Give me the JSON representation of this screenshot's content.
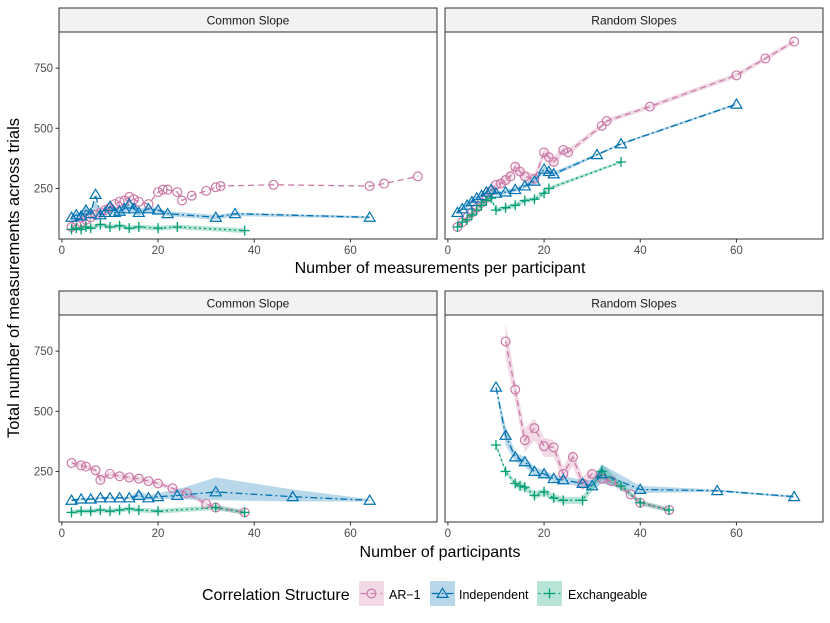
{
  "figure": {
    "y_axis_title": "Total number of measurements across trials",
    "legend_title": "Correlation Structure"
  },
  "colors": {
    "AR-1": "#cc79a7",
    "Independent": "#0072b2",
    "Exchangeable": "#009e73"
  },
  "legend": [
    {
      "name": "AR−1",
      "key": "AR-1",
      "marker": "circle"
    },
    {
      "name": "Independent",
      "key": "Independent",
      "marker": "triangle"
    },
    {
      "name": "Exchangeable",
      "key": "Exchangeable",
      "marker": "plus"
    }
  ],
  "chart_data": [
    {
      "type": "line",
      "title": "Common Slope",
      "xlabel": "Number of measurements per participant",
      "ylabel": "Total number of measurements across trials",
      "xlim": [
        -0.6,
        78
      ],
      "ylim": [
        40,
        900
      ],
      "xticks": [
        0,
        20,
        40,
        60
      ],
      "yticks": [
        250,
        500,
        750
      ],
      "series": [
        {
          "name": "AR-1",
          "marker": "circle",
          "dash": "dashed",
          "x": [
            2,
            3,
            4,
            5,
            6,
            7,
            8,
            9,
            10,
            11,
            12,
            13,
            14,
            15,
            16,
            18,
            20,
            21,
            22,
            24,
            25,
            27,
            30,
            32,
            33,
            44,
            64,
            67,
            74
          ],
          "y": [
            90,
            100,
            110,
            120,
            130,
            140,
            150,
            160,
            170,
            185,
            195,
            200,
            215,
            205,
            195,
            185,
            235,
            245,
            245,
            235,
            200,
            220,
            240,
            255,
            260,
            265,
            260,
            270,
            300
          ]
        },
        {
          "name": "Independent",
          "marker": "triangle",
          "dash": "dashdot",
          "x": [
            2,
            3,
            4,
            5,
            6,
            7,
            8,
            9,
            10,
            11,
            12,
            13,
            14,
            15,
            16,
            18,
            20,
            22,
            32,
            36,
            64
          ],
          "y": [
            130,
            140,
            135,
            160,
            145,
            225,
            140,
            150,
            175,
            150,
            155,
            165,
            185,
            165,
            150,
            165,
            160,
            145,
            130,
            145,
            130
          ],
          "band_upper": [
            145,
            150,
            150,
            175,
            160,
            200,
            155,
            165,
            185,
            165,
            170,
            180,
            200,
            185,
            165,
            175,
            170,
            155,
            140,
            150,
            135
          ],
          "band_lower": [
            115,
            125,
            120,
            140,
            130,
            160,
            125,
            135,
            150,
            135,
            140,
            145,
            160,
            145,
            135,
            150,
            145,
            135,
            120,
            135,
            125
          ]
        },
        {
          "name": "Exchangeable",
          "marker": "plus",
          "dash": "dotted",
          "x": [
            2,
            3,
            4,
            5,
            6,
            8,
            10,
            12,
            14,
            16,
            20,
            24,
            38
          ],
          "y": [
            80,
            85,
            80,
            90,
            85,
            100,
            90,
            95,
            85,
            90,
            85,
            90,
            75
          ],
          "band_upper": [
            90,
            95,
            90,
            100,
            95,
            110,
            100,
            105,
            95,
            100,
            95,
            100,
            85
          ],
          "band_lower": [
            70,
            75,
            70,
            80,
            75,
            90,
            80,
            85,
            75,
            80,
            75,
            80,
            65
          ]
        }
      ]
    },
    {
      "type": "line",
      "title": "Random Slopes",
      "xlabel": "Number of measurements per participant",
      "ylabel": "Total number of measurements across trials",
      "xlim": [
        -0.6,
        78
      ],
      "ylim": [
        40,
        900
      ],
      "xticks": [
        0,
        20,
        40,
        60
      ],
      "yticks": [
        250,
        500,
        750
      ],
      "series": [
        {
          "name": "AR-1",
          "marker": "circle",
          "dash": "dashed",
          "x": [
            2,
            3,
            4,
            5,
            6,
            7,
            8,
            9,
            10,
            11,
            12,
            13,
            14,
            15,
            16,
            18,
            20,
            21,
            22,
            24,
            25,
            32,
            33,
            42,
            60,
            66,
            72
          ],
          "y": [
            90,
            110,
            130,
            150,
            170,
            190,
            210,
            240,
            265,
            270,
            285,
            300,
            340,
            320,
            300,
            290,
            400,
            380,
            360,
            410,
            400,
            510,
            530,
            590,
            720,
            790,
            860
          ],
          "band_upper": [
            95,
            115,
            140,
            160,
            180,
            205,
            225,
            255,
            285,
            290,
            305,
            320,
            360,
            345,
            325,
            310,
            420,
            400,
            380,
            425,
            415,
            520,
            540,
            600,
            730,
            800,
            870
          ],
          "band_lower": [
            85,
            105,
            120,
            140,
            160,
            175,
            195,
            225,
            245,
            250,
            265,
            280,
            320,
            295,
            275,
            270,
            380,
            360,
            340,
            395,
            385,
            500,
            520,
            580,
            710,
            780,
            850
          ]
        },
        {
          "name": "Independent",
          "marker": "triangle",
          "dash": "dashdot",
          "x": [
            2,
            3,
            4,
            5,
            6,
            7,
            8,
            9,
            10,
            12,
            14,
            16,
            18,
            20,
            21,
            22,
            31,
            36,
            60
          ],
          "y": [
            150,
            165,
            180,
            195,
            210,
            220,
            235,
            245,
            230,
            235,
            245,
            260,
            280,
            330,
            320,
            310,
            390,
            435,
            600
          ],
          "band_upper": [
            155,
            170,
            190,
            205,
            220,
            230,
            245,
            255,
            240,
            245,
            255,
            270,
            295,
            340,
            330,
            320,
            395,
            440,
            605
          ],
          "band_lower": [
            145,
            160,
            170,
            185,
            200,
            210,
            225,
            235,
            220,
            225,
            235,
            250,
            265,
            320,
            310,
            300,
            385,
            430,
            595
          ]
        },
        {
          "name": "Exchangeable",
          "marker": "plus",
          "dash": "dotted",
          "x": [
            2,
            3,
            4,
            5,
            6,
            7,
            8,
            9,
            10,
            12,
            14,
            16,
            18,
            20,
            21,
            36
          ],
          "y": [
            90,
            110,
            120,
            140,
            160,
            180,
            200,
            210,
            160,
            170,
            180,
            200,
            205,
            230,
            250,
            360
          ],
          "band_upper": [
            95,
            115,
            125,
            150,
            170,
            190,
            210,
            220,
            170,
            180,
            190,
            210,
            215,
            240,
            258,
            365
          ],
          "band_lower": [
            85,
            105,
            115,
            130,
            150,
            170,
            190,
            200,
            150,
            160,
            170,
            190,
            195,
            220,
            242,
            355
          ]
        }
      ]
    },
    {
      "type": "line",
      "title": "Common Slope",
      "xlabel": "Number of participants",
      "ylabel": "Total number of measurements across trials",
      "xlim": [
        -0.6,
        78
      ],
      "ylim": [
        40,
        900
      ],
      "xticks": [
        0,
        20,
        40,
        60
      ],
      "yticks": [
        250,
        500,
        750
      ],
      "series": [
        {
          "name": "AR-1",
          "marker": "circle",
          "dash": "dashed",
          "x": [
            2,
            4,
            5,
            7,
            8,
            10,
            12,
            14,
            16,
            18,
            20,
            23,
            26,
            30,
            32,
            38
          ],
          "y": [
            285,
            275,
            270,
            255,
            215,
            240,
            230,
            225,
            220,
            210,
            200,
            180,
            160,
            115,
            100,
            80
          ],
          "band_upper": [
            295,
            285,
            280,
            265,
            235,
            250,
            240,
            235,
            230,
            220,
            210,
            190,
            170,
            125,
            110,
            90
          ],
          "band_lower": [
            275,
            265,
            260,
            245,
            200,
            230,
            220,
            215,
            210,
            200,
            190,
            170,
            150,
            105,
            90,
            70
          ]
        },
        {
          "name": "Independent",
          "marker": "triangle",
          "dash": "dashdot",
          "x": [
            2,
            4,
            6,
            8,
            10,
            12,
            14,
            16,
            18,
            20,
            24,
            32,
            48,
            64
          ],
          "y": [
            130,
            135,
            135,
            140,
            140,
            140,
            140,
            150,
            140,
            145,
            150,
            165,
            145,
            130
          ],
          "band_upper": [
            135,
            140,
            140,
            145,
            145,
            145,
            145,
            170,
            150,
            160,
            175,
            225,
            175,
            135
          ],
          "band_lower": [
            125,
            130,
            130,
            135,
            135,
            135,
            135,
            130,
            130,
            135,
            135,
            130,
            125,
            125
          ]
        },
        {
          "name": "Exchangeable",
          "marker": "plus",
          "dash": "dotted",
          "x": [
            2,
            4,
            6,
            8,
            10,
            12,
            14,
            16,
            20,
            32,
            38
          ],
          "y": [
            80,
            85,
            85,
            90,
            85,
            90,
            95,
            90,
            85,
            100,
            80
          ],
          "band_upper": [
            90,
            95,
            95,
            100,
            95,
            100,
            105,
            100,
            95,
            110,
            90
          ],
          "band_lower": [
            70,
            75,
            75,
            80,
            75,
            80,
            85,
            80,
            75,
            90,
            70
          ]
        }
      ]
    },
    {
      "type": "line",
      "title": "Random Slopes",
      "xlabel": "Number of participants",
      "ylabel": "Total number of measurements across trials",
      "xlim": [
        -0.6,
        78
      ],
      "ylim": [
        40,
        900
      ],
      "xticks": [
        0,
        20,
        40,
        60
      ],
      "yticks": [
        250,
        500,
        750
      ],
      "series": [
        {
          "name": "AR-1",
          "marker": "circle",
          "dash": "dashed",
          "x": [
            12,
            14,
            16,
            18,
            20,
            22,
            24,
            26,
            28,
            30,
            32,
            34,
            38,
            40,
            46
          ],
          "y": [
            790,
            590,
            380,
            430,
            355,
            350,
            240,
            310,
            200,
            240,
            220,
            210,
            155,
            120,
            90
          ],
          "band_upper": [
            870,
            630,
            430,
            470,
            390,
            380,
            270,
            340,
            230,
            260,
            240,
            225,
            165,
            130,
            100
          ],
          "band_lower": [
            720,
            540,
            330,
            380,
            310,
            310,
            210,
            270,
            170,
            215,
            200,
            195,
            145,
            110,
            80
          ]
        },
        {
          "name": "Independent",
          "marker": "triangle",
          "dash": "dashdot",
          "x": [
            10,
            12,
            14,
            16,
            18,
            20,
            22,
            24,
            28,
            30,
            32,
            40,
            56,
            72
          ],
          "y": [
            600,
            400,
            310,
            290,
            250,
            240,
            220,
            215,
            200,
            190,
            240,
            175,
            170,
            145
          ],
          "band_upper": [
            610,
            440,
            330,
            310,
            270,
            255,
            235,
            230,
            215,
            215,
            280,
            190,
            175,
            150
          ],
          "band_lower": [
            590,
            360,
            290,
            270,
            230,
            225,
            205,
            200,
            185,
            170,
            200,
            160,
            165,
            140
          ]
        },
        {
          "name": "Exchangeable",
          "marker": "plus",
          "dash": "dotted",
          "x": [
            10,
            12,
            14,
            15,
            16,
            18,
            20,
            22,
            24,
            28,
            32,
            36,
            40,
            46
          ],
          "y": [
            360,
            250,
            200,
            190,
            185,
            150,
            165,
            140,
            130,
            130,
            250,
            190,
            120,
            90
          ],
          "band_upper": [
            370,
            260,
            210,
            210,
            200,
            165,
            180,
            155,
            145,
            145,
            280,
            205,
            130,
            100
          ],
          "band_lower": [
            350,
            240,
            190,
            170,
            170,
            135,
            150,
            125,
            115,
            115,
            220,
            175,
            110,
            80
          ]
        }
      ]
    }
  ]
}
